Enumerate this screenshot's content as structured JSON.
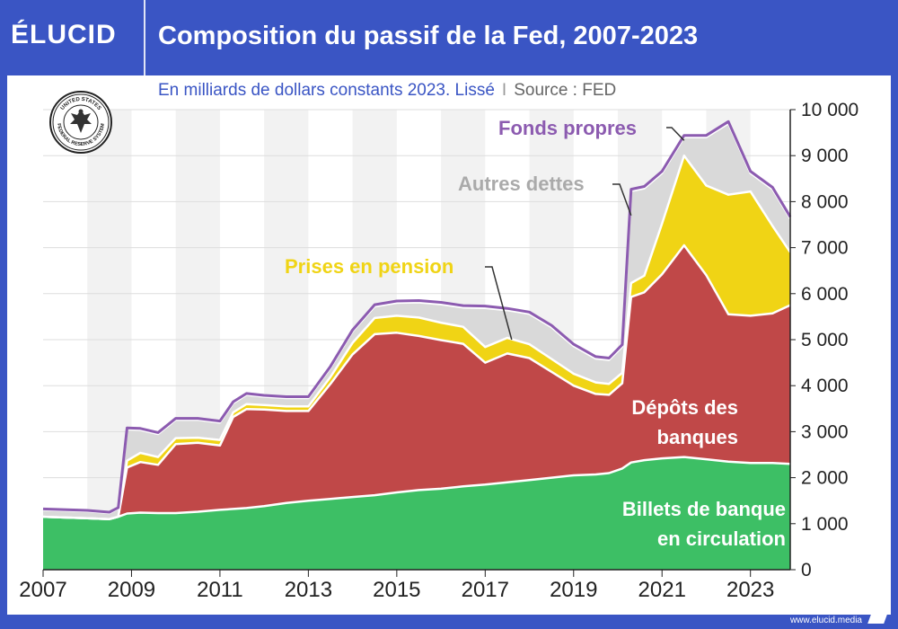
{
  "header": {
    "logo": "ÉLUCID",
    "title": "Composition du passif de la Fed, 2007-2023"
  },
  "subtitle": {
    "main": "En milliards de dollars constants 2023. Lissé",
    "separator": "I",
    "source": "Source : FED"
  },
  "seal_text": [
    "UNITED STATES",
    "FEDERAL RESERVE SYSTEM"
  ],
  "footer": {
    "url": "www.elucid.media"
  },
  "colors": {
    "brand": "#3a55c4",
    "billets": "#3dbf65",
    "depots": "#c04848",
    "prises": "#f0d415",
    "autres": "#d9d9d9",
    "fonds": "#8c5bb0",
    "band": "#f2f2f2"
  },
  "chart_data": {
    "type": "area",
    "stacked": true,
    "x": [
      2007.0,
      2008.0,
      2008.5,
      2008.7,
      2008.9,
      2009.2,
      2009.6,
      2010.0,
      2010.5,
      2011.0,
      2011.3,
      2011.6,
      2012.0,
      2012.5,
      2013.0,
      2013.5,
      2014.0,
      2014.5,
      2015.0,
      2015.5,
      2016.0,
      2016.5,
      2017.0,
      2017.5,
      2018.0,
      2018.5,
      2019.0,
      2019.5,
      2019.8,
      2020.1,
      2020.3,
      2020.6,
      2021.0,
      2021.5,
      2022.0,
      2022.5,
      2023.0,
      2023.5,
      2023.9
    ],
    "series": [
      {
        "key": "billets",
        "label": "Billets de banque en circulation",
        "values": [
          1150,
          1120,
          1100,
          1150,
          1220,
          1240,
          1230,
          1230,
          1260,
          1300,
          1320,
          1340,
          1380,
          1450,
          1500,
          1540,
          1580,
          1620,
          1680,
          1730,
          1760,
          1810,
          1850,
          1900,
          1950,
          2000,
          2050,
          2070,
          2100,
          2200,
          2330,
          2380,
          2420,
          2450,
          2400,
          2350,
          2320,
          2320,
          2300
        ]
      },
      {
        "key": "depots",
        "label": "Dépôts des banques",
        "values": [
          0,
          0,
          0,
          0,
          1000,
          1100,
          1050,
          1500,
          1500,
          1400,
          2000,
          2150,
          2100,
          2000,
          1950,
          2500,
          3100,
          3500,
          3470,
          3350,
          3230,
          3100,
          2650,
          2800,
          2650,
          2300,
          1950,
          1750,
          1700,
          1850,
          3600,
          3650,
          4000,
          4600,
          4000,
          3200,
          3200,
          3250,
          3450
        ]
      },
      {
        "key": "prises",
        "label": "Prises en pension",
        "values": [
          0,
          0,
          0,
          0,
          150,
          200,
          170,
          130,
          110,
          120,
          100,
          110,
          100,
          100,
          100,
          150,
          250,
          350,
          370,
          400,
          380,
          370,
          340,
          340,
          300,
          280,
          260,
          250,
          240,
          230,
          300,
          360,
          1100,
          1950,
          1950,
          2600,
          2700,
          1900,
          1150
        ]
      },
      {
        "key": "autres",
        "label": "Autres dettes",
        "values": [
          150,
          150,
          130,
          180,
          680,
          500,
          500,
          400,
          390,
          380,
          200,
          200,
          180,
          180,
          180,
          200,
          250,
          250,
          280,
          330,
          400,
          420,
          850,
          600,
          660,
          690,
          600,
          520,
          520,
          570,
          2000,
          1900,
          1100,
          400,
          1050,
          1550,
          400,
          800,
          730
        ]
      },
      {
        "key": "fonds",
        "label": "Fonds propres",
        "values": [
          20,
          20,
          20,
          20,
          30,
          30,
          30,
          30,
          30,
          30,
          30,
          30,
          30,
          30,
          30,
          30,
          30,
          40,
          40,
          40,
          40,
          40,
          40,
          40,
          40,
          40,
          40,
          40,
          40,
          40,
          40,
          40,
          40,
          40,
          40,
          40,
          40,
          40,
          40
        ]
      }
    ],
    "ylim": [
      0,
      10000
    ],
    "yticks": [
      0,
      1000,
      2000,
      3000,
      4000,
      5000,
      6000,
      7000,
      8000,
      9000,
      10000
    ],
    "ytick_labels": [
      "0",
      "1 000",
      "2 000",
      "3 000",
      "4 000",
      "5 000",
      "6 000",
      "7 000",
      "8 000",
      "9 000",
      "10 000"
    ],
    "xlim": [
      2007,
      2023.9
    ],
    "xticks": [
      2007,
      2009,
      2011,
      2013,
      2015,
      2017,
      2019,
      2021,
      2023
    ],
    "xtick_labels": [
      "2007",
      "2009",
      "2011",
      "2013",
      "2015",
      "2017",
      "2019",
      "2021",
      "2023"
    ],
    "annotations": [
      {
        "key": "fonds",
        "text": "Fonds propres",
        "color": "#8c5bb0",
        "x": 2021.5,
        "y": 9330
      },
      {
        "key": "autres",
        "text": "Autres dettes",
        "color": "#aaaaaa",
        "x": 2020.3,
        "y": 7700
      },
      {
        "key": "prises",
        "text": "Prises en pension",
        "color": "#f0d415",
        "x": 2017.6,
        "y": 5000
      },
      {
        "key": "depots",
        "text": [
          "Dépôts des",
          "banques"
        ],
        "color": "#ffffff"
      },
      {
        "key": "billets",
        "text": [
          "Billets de banque",
          "en circulation"
        ],
        "color": "#ffffff"
      }
    ],
    "grid": true,
    "alternating_year_bands": true
  }
}
